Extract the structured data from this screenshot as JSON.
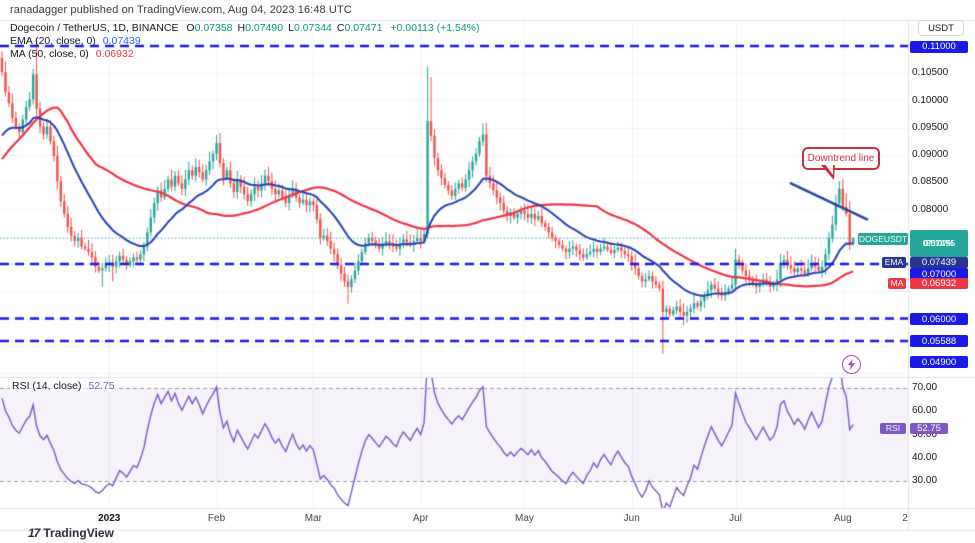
{
  "header": {
    "attribution": "ranadagger published on TradingView.com, Aug 04, 2023 16:48 UTC"
  },
  "legend": {
    "symbol": "Dogecoin / TetherUS, 1D, BINANCE",
    "ohlc": [
      {
        "label": "O",
        "value": "0.07358"
      },
      {
        "label": "H",
        "value": "0.07490"
      },
      {
        "label": "L",
        "value": "0.07344"
      },
      {
        "label": "C",
        "value": "0.07471"
      }
    ],
    "change": "+0.00113 (+1.54%)",
    "ema_label": "EMA (20, close, 0)",
    "ema_value": "0.07439",
    "ma_label": "MA (50, close, 0)",
    "ma_value": "0.06932",
    "rsi_label": "RSI (14, close)",
    "rsi_value": "52.75"
  },
  "axis": {
    "currency_button": "USDT",
    "price_labels": [
      "0.10500",
      "0.10000",
      "0.09500",
      "0.09000",
      "0.08500",
      "0.08000"
    ],
    "rsi_labels": [
      "70.00",
      "60.00",
      "50.00",
      "40.00",
      "30.00"
    ],
    "level_badges": [
      "0.11000",
      "0.07000",
      "0.06000",
      "0.05588",
      "0.04900"
    ],
    "symbol_tag": "DOGEUSDT",
    "ema_tag": "EMA",
    "ma_tag": "MA",
    "rsi_tag": "RSI",
    "last_badge": {
      "price": "0.07471",
      "change_pct": "-25.07%",
      "countdown": "07:11:55"
    },
    "ema_badge": "0.07439",
    "ma_badge": "0.06932",
    "rsi_badge": "52.75",
    "months": [
      {
        "label": "2023",
        "day": 31
      },
      {
        "label": "Feb",
        "day": 62
      },
      {
        "label": "Mar",
        "day": 90
      },
      {
        "label": "Apr",
        "day": 121
      },
      {
        "label": "May",
        "day": 151
      },
      {
        "label": "Jun",
        "day": 182
      },
      {
        "label": "Jul",
        "day": 212
      },
      {
        "label": "Aug",
        "day": 243
      },
      {
        "label": "2",
        "day": 261,
        "grid": false
      }
    ]
  },
  "annotations_text": {
    "downtrend": "Downtrend line"
  },
  "footer": {
    "logo_mark": "17",
    "logo_text": "TradingView"
  },
  "chart_data": {
    "type": "candlestick",
    "title": "Dogecoin / TetherUS, 1D, BINANCE",
    "symbol": "DOGEUSDT",
    "exchange": "BINANCE",
    "interval": "1D",
    "start_date": "2022-12-01",
    "end_date": "2023-08-04",
    "ylim_visible": [
      0.049,
      0.1118
    ],
    "rsi_ylim": [
      17,
      73
    ],
    "last": {
      "open": 0.07358,
      "high": 0.0749,
      "low": 0.07344,
      "close": 0.07471,
      "change": "+0.00113",
      "change_pct": "+1.54%"
    },
    "levels": [
      {
        "value": 0.11,
        "label": "0.11000",
        "line": true
      },
      {
        "value": 0.07,
        "label": "0.07000",
        "line": true
      },
      {
        "value": 0.06,
        "label": "0.06000",
        "line": true
      },
      {
        "value": 0.05588,
        "label": "0.05588",
        "line": true
      },
      {
        "value": 0.049,
        "label": "0.04900",
        "line": false
      }
    ],
    "indicators": {
      "ema_period": 20,
      "ma_period": 50,
      "rsi_period": 14,
      "ema_last": 0.07439,
      "ma_last": 0.06932,
      "rsi_last": 52.75
    },
    "annotations": {
      "trendline": {
        "from_day": 228,
        "from_price": 0.0848,
        "to_day": 250,
        "to_price": 0.0782
      },
      "callout": "Downtrend line",
      "flash_marker_day": 245
    },
    "first_open": 0.1078,
    "pre_closes": [
      0.06,
      0.0595,
      0.0605,
      0.061,
      0.0625,
      0.0615,
      0.062,
      0.063,
      0.0655,
      0.066,
      0.0672,
      0.0668,
      0.0702,
      0.0755,
      0.0782,
      0.0858,
      0.112,
      0.131,
      0.1255,
      0.1385,
      0.1295,
      0.123,
      0.118,
      0.121,
      0.1155,
      0.1092,
      0.1135,
      0.0905,
      0.0832,
      0.0868,
      0.0885,
      0.0902,
      0.0918,
      0.0892,
      0.0875,
      0.0858,
      0.0842,
      0.0855,
      0.0838,
      0.0822,
      0.0835,
      0.0848,
      0.0862,
      0.0878,
      0.0895,
      0.0922,
      0.0958,
      0.1015,
      0.1042
    ],
    "closes": [
      0.1052,
      0.1015,
      0.0995,
      0.0968,
      0.0952,
      0.0942,
      0.0965,
      0.0988,
      0.1002,
      0.1048,
      0.0985,
      0.0952,
      0.0938,
      0.0952,
      0.0925,
      0.0898,
      0.0852,
      0.0815,
      0.0792,
      0.0768,
      0.0752,
      0.0742,
      0.0748,
      0.0732,
      0.0728,
      0.0722,
      0.0712,
      0.0695,
      0.0688,
      0.0692,
      0.0698,
      0.0702,
      0.0695,
      0.0705,
      0.0715,
      0.0708,
      0.0698,
      0.0705,
      0.0712,
      0.0708,
      0.0718,
      0.0732,
      0.0758,
      0.0785,
      0.0812,
      0.0835,
      0.0822,
      0.0838,
      0.0855,
      0.0842,
      0.0862,
      0.0848,
      0.0838,
      0.0855,
      0.0872,
      0.0862,
      0.0878,
      0.0868,
      0.0855,
      0.0872,
      0.0888,
      0.0902,
      0.0922,
      0.0885,
      0.0858,
      0.0872,
      0.0848,
      0.0832,
      0.0855,
      0.0842,
      0.0828,
      0.0815,
      0.0828,
      0.0842,
      0.0835,
      0.0848,
      0.0862,
      0.0852,
      0.0838,
      0.0828,
      0.0835,
      0.0822,
      0.0812,
      0.0825,
      0.0838,
      0.0822,
      0.0812,
      0.0818,
      0.0808,
      0.0815,
      0.0808,
      0.0782,
      0.0748,
      0.0752,
      0.0742,
      0.0728,
      0.0718,
      0.0698,
      0.0682,
      0.0668,
      0.0658,
      0.0672,
      0.0688,
      0.0705,
      0.0722,
      0.0738,
      0.0748,
      0.0742,
      0.0735,
      0.0728,
      0.0735,
      0.0742,
      0.0738,
      0.0732,
      0.0728,
      0.0738,
      0.0745,
      0.074,
      0.0735,
      0.0742,
      0.0748,
      0.0742,
      0.0755,
      0.0962,
      0.0935,
      0.0895,
      0.0872,
      0.0858,
      0.0845,
      0.0835,
      0.0825,
      0.0838,
      0.0848,
      0.084,
      0.0855,
      0.0872,
      0.0888,
      0.0902,
      0.0925,
      0.0938,
      0.0862,
      0.0848,
      0.0835,
      0.0822,
      0.0812,
      0.0798,
      0.0788,
      0.0795,
      0.0785,
      0.0792,
      0.0798,
      0.0792,
      0.0785,
      0.0792,
      0.0782,
      0.0788,
      0.0775,
      0.0768,
      0.0758,
      0.0748,
      0.0742,
      0.0735,
      0.0728,
      0.0722,
      0.0728,
      0.0732,
      0.0725,
      0.0718,
      0.0712,
      0.0718,
      0.0722,
      0.0728,
      0.0722,
      0.0728,
      0.0732,
      0.0726,
      0.072,
      0.0726,
      0.073,
      0.0724,
      0.0718,
      0.0714,
      0.0702,
      0.0692,
      0.0678,
      0.0668,
      0.0672,
      0.0678,
      0.0668,
      0.0662,
      0.0655,
      0.0612,
      0.0618,
      0.0608,
      0.0615,
      0.0622,
      0.0612,
      0.0605,
      0.0612,
      0.0618,
      0.0628,
      0.0622,
      0.0632,
      0.0642,
      0.0652,
      0.0662,
      0.0655,
      0.0648,
      0.0642,
      0.0648,
      0.0655,
      0.0662,
      0.0708,
      0.0698,
      0.0688,
      0.0678,
      0.0672,
      0.0665,
      0.0658,
      0.0665,
      0.0672,
      0.0665,
      0.0658,
      0.0662,
      0.0672,
      0.0702,
      0.0708,
      0.0698,
      0.0692,
      0.0685,
      0.0692,
      0.0688,
      0.0682,
      0.0692,
      0.0702,
      0.0695,
      0.0688,
      0.0695,
      0.0718,
      0.0748,
      0.0772,
      0.0812,
      0.0838,
      0.0805,
      0.0792,
      0.0736,
      0.07471
    ],
    "overrides": {
      "0": {
        "open": 0.1078,
        "high": 0.109
      },
      "9": {
        "high": 0.1058
      },
      "10": {
        "high": 0.1113,
        "low": 0.0972
      },
      "29": {
        "low": 0.0658
      },
      "32": {
        "low": 0.0668
      },
      "100": {
        "low": 0.0627
      },
      "122": {
        "high": 0.0762
      },
      "123": {
        "high": 0.1062,
        "low": 0.0748
      },
      "124": {
        "high": 0.1043
      },
      "139": {
        "high": 0.0958
      },
      "182": {
        "low": 0.0688
      },
      "191": {
        "low": 0.0535
      },
      "197": {
        "low": 0.0588
      },
      "212": {
        "high": 0.0728
      },
      "225": {
        "high": 0.0718
      },
      "242": {
        "high": 0.0852
      },
      "244": {
        "high": 0.083
      },
      "246": {
        "open": 0.07358,
        "high": 0.0749,
        "low": 0.07344,
        "close": 0.07471
      }
    },
    "colors": {
      "up": "#26a69a",
      "down": "#ef5350",
      "ema": "#2840b4",
      "ma": "#f23645",
      "rsi": "#7e57c2",
      "level": "#1a1ae6",
      "last_price": "#26a69a",
      "grid": "#f0f3fa",
      "border": "#e0e3eb",
      "trend": "#24459c",
      "callout": "#cc2f3c",
      "rsi_band": "rgba(126,87,194,0.08)",
      "rsi_dash": "#9b9ea6",
      "ema_badge": "#283593",
      "ma_badge": "#f23645",
      "level_badge": "#1a1ae6",
      "last_badge": "#26a69a",
      "rsi_badge": "#7e57c2",
      "green_text": "#089981"
    }
  }
}
